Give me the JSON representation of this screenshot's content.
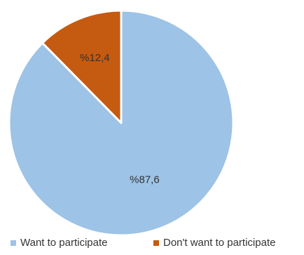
{
  "chart_data": {
    "type": "pie",
    "categories": [
      "Want to participate",
      "Don't want to participate"
    ],
    "values": [
      87.6,
      12.4
    ],
    "data_labels": [
      "%87,6",
      "%12,4"
    ],
    "colors": [
      "#9dc3e6",
      "#c55a11"
    ],
    "start_angle": "12 o'clock, clockwise",
    "slice_border_color": "#ffffff",
    "legend_position": "bottom",
    "title": "",
    "label_color": "#333333"
  }
}
